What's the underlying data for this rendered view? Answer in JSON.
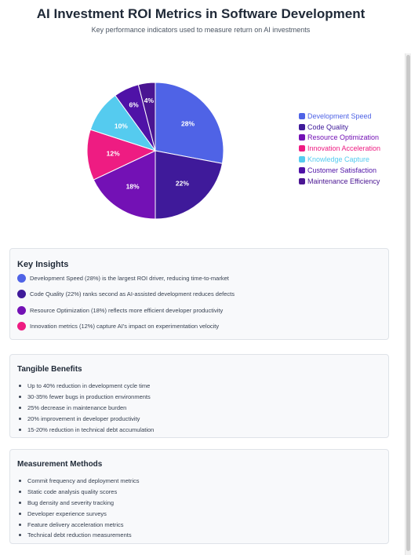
{
  "title": "AI Investment ROI Metrics in Software Development",
  "subtitle": "Key performance indicators used to measure return on AI investments",
  "chart_data": {
    "type": "pie",
    "title": "AI Investment ROI Metrics in Software Development",
    "legend_position": "right",
    "categories": [
      "Development Speed",
      "Code Quality",
      "Resource Optimization",
      "Innovation Acceleration",
      "Knowledge Capture",
      "Customer Satisfaction",
      "Maintenance Efficiency"
    ],
    "values": [
      28,
      22,
      18,
      12,
      10,
      6,
      4
    ],
    "labels": [
      "28%",
      "22%",
      "18%",
      "12%",
      "10%",
      "6%",
      "4%"
    ],
    "colors": [
      "#4f63e6",
      "#3f1a9a",
      "#7311b5",
      "#ee1c82",
      "#55cbef",
      "#4f12a7",
      "#4a1592"
    ],
    "legend_text_colors": [
      "#4f63e6",
      "#3f1a9a",
      "#7311b5",
      "#ee1c82",
      "#55cbef",
      "#4f12a7",
      "#4a1592"
    ]
  },
  "insights": {
    "heading": "Key Insights",
    "items": [
      {
        "text": "Development Speed (28%) is the largest ROI driver, reducing time-to-market",
        "color": "#4f63e6"
      },
      {
        "text": "Code Quality (22%) ranks second as AI-assisted development reduces defects",
        "color": "#3f1a9a"
      },
      {
        "text": "Resource Optimization (18%) reflects more efficient developer productivity",
        "color": "#7311b5"
      },
      {
        "text": "Innovation metrics (12%) capture AI's impact on experimentation velocity",
        "color": "#ee1c82"
      }
    ]
  },
  "benefits": {
    "heading": "Tangible Benefits",
    "items": [
      "Up to 40% reduction in development cycle time",
      "30-35% fewer bugs in production environments",
      "25% decrease in maintenance burden",
      "20% improvement in developer productivity",
      "15-20% reduction in technical debt accumulation"
    ]
  },
  "methods": {
    "heading": "Measurement Methods",
    "items": [
      "Commit frequency and deployment metrics",
      "Static code analysis quality scores",
      "Bug density and severity tracking",
      "Developer experience surveys",
      "Feature delivery acceleration metrics",
      "Technical debt reduction measurements"
    ]
  }
}
